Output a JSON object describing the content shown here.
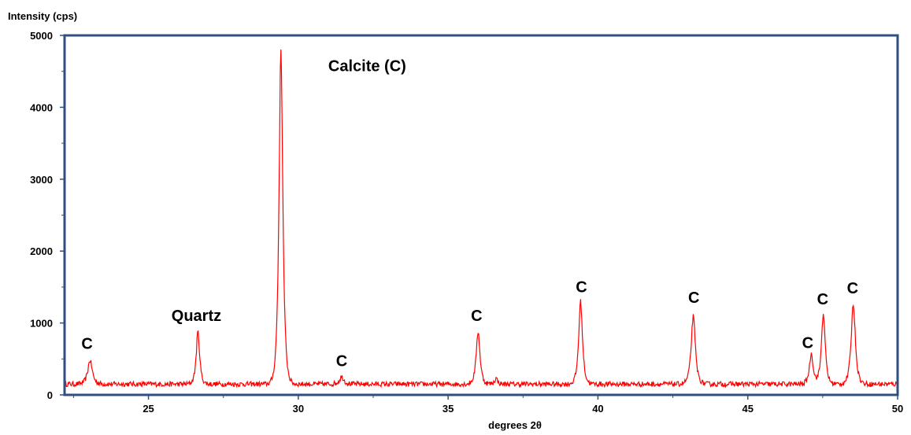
{
  "chart_data": {
    "type": "line",
    "title": "",
    "ylabel": "Intensity (cps)",
    "xlabel": "degrees 2θ",
    "xlim": [
      22.2,
      50
    ],
    "ylim": [
      0,
      5000
    ],
    "x_ticks": [
      25,
      30,
      35,
      40,
      45,
      50
    ],
    "y_ticks": [
      0,
      1000,
      2000,
      3000,
      4000,
      5000
    ],
    "x_minor_step": 2.5,
    "y_minor_step": 500,
    "grid": false,
    "line_color": "#ff0000",
    "frame_color": "#2e4f7f",
    "baseline": 150,
    "noise": 35,
    "peaks": [
      {
        "x": 23.05,
        "height": 330,
        "width": 0.12
      },
      {
        "x": 26.65,
        "height": 730,
        "width": 0.09
      },
      {
        "x": 29.42,
        "height": 4650,
        "width": 0.1
      },
      {
        "x": 31.45,
        "height": 100,
        "width": 0.12
      },
      {
        "x": 36.0,
        "height": 730,
        "width": 0.1
      },
      {
        "x": 36.6,
        "height": 80,
        "width": 0.08
      },
      {
        "x": 39.42,
        "height": 1150,
        "width": 0.1
      },
      {
        "x": 43.18,
        "height": 940,
        "width": 0.11
      },
      {
        "x": 47.12,
        "height": 420,
        "width": 0.1
      },
      {
        "x": 47.52,
        "height": 980,
        "width": 0.1
      },
      {
        "x": 48.52,
        "height": 1120,
        "width": 0.11
      }
    ],
    "annotations": [
      {
        "text": "C",
        "x": 22.95,
        "y": 640
      },
      {
        "text": "Quartz",
        "x": 26.6,
        "y": 1030
      },
      {
        "text": "Calcite (C)",
        "x": 31.0,
        "y": 4500
      },
      {
        "text": "C",
        "x": 31.45,
        "y": 400
      },
      {
        "text": "C",
        "x": 35.95,
        "y": 1030
      },
      {
        "text": "C",
        "x": 39.45,
        "y": 1430
      },
      {
        "text": "C",
        "x": 43.2,
        "y": 1280
      },
      {
        "text": "C",
        "x": 47.0,
        "y": 650
      },
      {
        "text": "C",
        "x": 47.5,
        "y": 1260
      },
      {
        "text": "C",
        "x": 48.5,
        "y": 1410
      }
    ]
  }
}
